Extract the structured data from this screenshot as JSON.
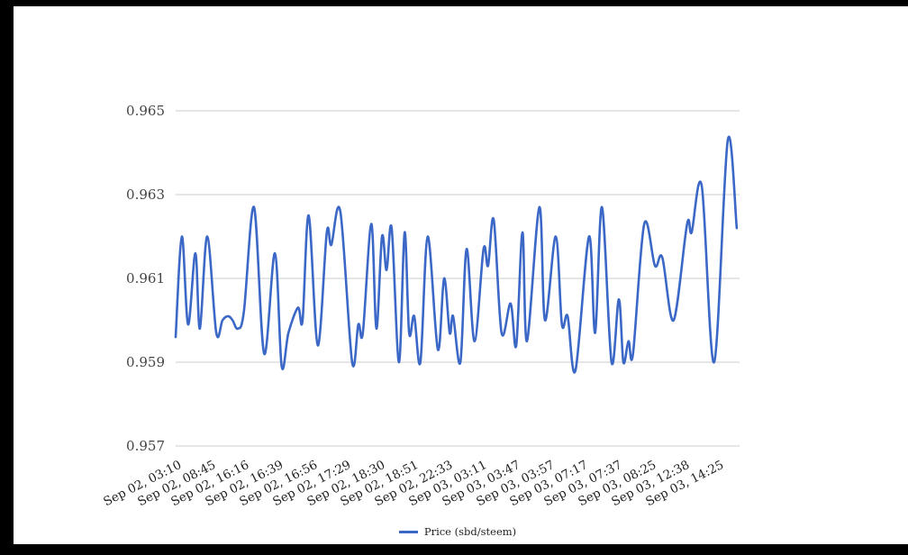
{
  "frame": {
    "background": "#ffffff",
    "border_color": "#000000"
  },
  "chart_data": {
    "type": "line",
    "title": "",
    "grid": true,
    "legend_position": "bottom",
    "gridline_color": "#cccccc",
    "series": [
      {
        "name": "Price (sbd/steem)",
        "color": "#3b68c6"
      }
    ],
    "y_axis": {
      "min": 0.957,
      "max": 0.965,
      "tick_labels": [
        "0.957",
        "0.959",
        "0.961",
        "0.963",
        "0.965"
      ]
    },
    "x_axis": {
      "tick_labels": [
        "Sep 02, 03:10",
        "Sep 02, 08:45",
        "Sep 02, 16:16",
        "Sep 02, 16:39",
        "Sep 02, 16:56",
        "Sep 02, 17:29",
        "Sep 02, 18:30",
        "Sep 02, 18:51",
        "Sep 02, 22:33",
        "Sep 03, 03:11",
        "Sep 03, 03:47",
        "Sep 03, 03:57",
        "Sep 03, 07:17",
        "Sep 03, 07:37",
        "Sep 03, 08:25",
        "Sep 03, 12:38",
        "Sep 03, 14:25"
      ]
    },
    "points": [
      [
        0.0,
        0.9596
      ],
      [
        0.011,
        0.962
      ],
      [
        0.022,
        0.9599
      ],
      [
        0.035,
        0.9616
      ],
      [
        0.043,
        0.9598
      ],
      [
        0.056,
        0.962
      ],
      [
        0.072,
        0.9597
      ],
      [
        0.083,
        0.96
      ],
      [
        0.093,
        0.9601
      ],
      [
        0.101,
        0.96
      ],
      [
        0.11,
        0.9598
      ],
      [
        0.121,
        0.9602
      ],
      [
        0.139,
        0.9627
      ],
      [
        0.157,
        0.9592
      ],
      [
        0.176,
        0.9616
      ],
      [
        0.188,
        0.9589
      ],
      [
        0.2,
        0.9597
      ],
      [
        0.217,
        0.9603
      ],
      [
        0.225,
        0.96
      ],
      [
        0.236,
        0.9625
      ],
      [
        0.252,
        0.9594
      ],
      [
        0.268,
        0.9621
      ],
      [
        0.276,
        0.9618
      ],
      [
        0.292,
        0.9626
      ],
      [
        0.313,
        0.959
      ],
      [
        0.324,
        0.9599
      ],
      [
        0.332,
        0.9597
      ],
      [
        0.347,
        0.9623
      ],
      [
        0.356,
        0.9598
      ],
      [
        0.366,
        0.962
      ],
      [
        0.374,
        0.9612
      ],
      [
        0.383,
        0.9622
      ],
      [
        0.396,
        0.959
      ],
      [
        0.406,
        0.9621
      ],
      [
        0.414,
        0.9597
      ],
      [
        0.423,
        0.9601
      ],
      [
        0.434,
        0.959
      ],
      [
        0.447,
        0.962
      ],
      [
        0.465,
        0.9593
      ],
      [
        0.476,
        0.961
      ],
      [
        0.486,
        0.9597
      ],
      [
        0.492,
        0.9601
      ],
      [
        0.505,
        0.959
      ],
      [
        0.516,
        0.9617
      ],
      [
        0.53,
        0.9595
      ],
      [
        0.546,
        0.9617
      ],
      [
        0.554,
        0.9613
      ],
      [
        0.564,
        0.9624
      ],
      [
        0.578,
        0.9597
      ],
      [
        0.594,
        0.9604
      ],
      [
        0.604,
        0.9594
      ],
      [
        0.615,
        0.9621
      ],
      [
        0.623,
        0.9595
      ],
      [
        0.645,
        0.9627
      ],
      [
        0.655,
        0.96
      ],
      [
        0.674,
        0.962
      ],
      [
        0.685,
        0.9599
      ],
      [
        0.695,
        0.9601
      ],
      [
        0.709,
        0.9588
      ],
      [
        0.733,
        0.962
      ],
      [
        0.744,
        0.9597
      ],
      [
        0.756,
        0.9627
      ],
      [
        0.773,
        0.959
      ],
      [
        0.786,
        0.9605
      ],
      [
        0.794,
        0.959
      ],
      [
        0.803,
        0.9595
      ],
      [
        0.811,
        0.9592
      ],
      [
        0.831,
        0.9623
      ],
      [
        0.85,
        0.9613
      ],
      [
        0.863,
        0.9615
      ],
      [
        0.883,
        0.96
      ],
      [
        0.907,
        0.9623
      ],
      [
        0.915,
        0.9621
      ],
      [
        0.933,
        0.9632
      ],
      [
        0.955,
        0.959
      ],
      [
        0.979,
        0.9643
      ],
      [
        0.995,
        0.9622
      ]
    ]
  }
}
